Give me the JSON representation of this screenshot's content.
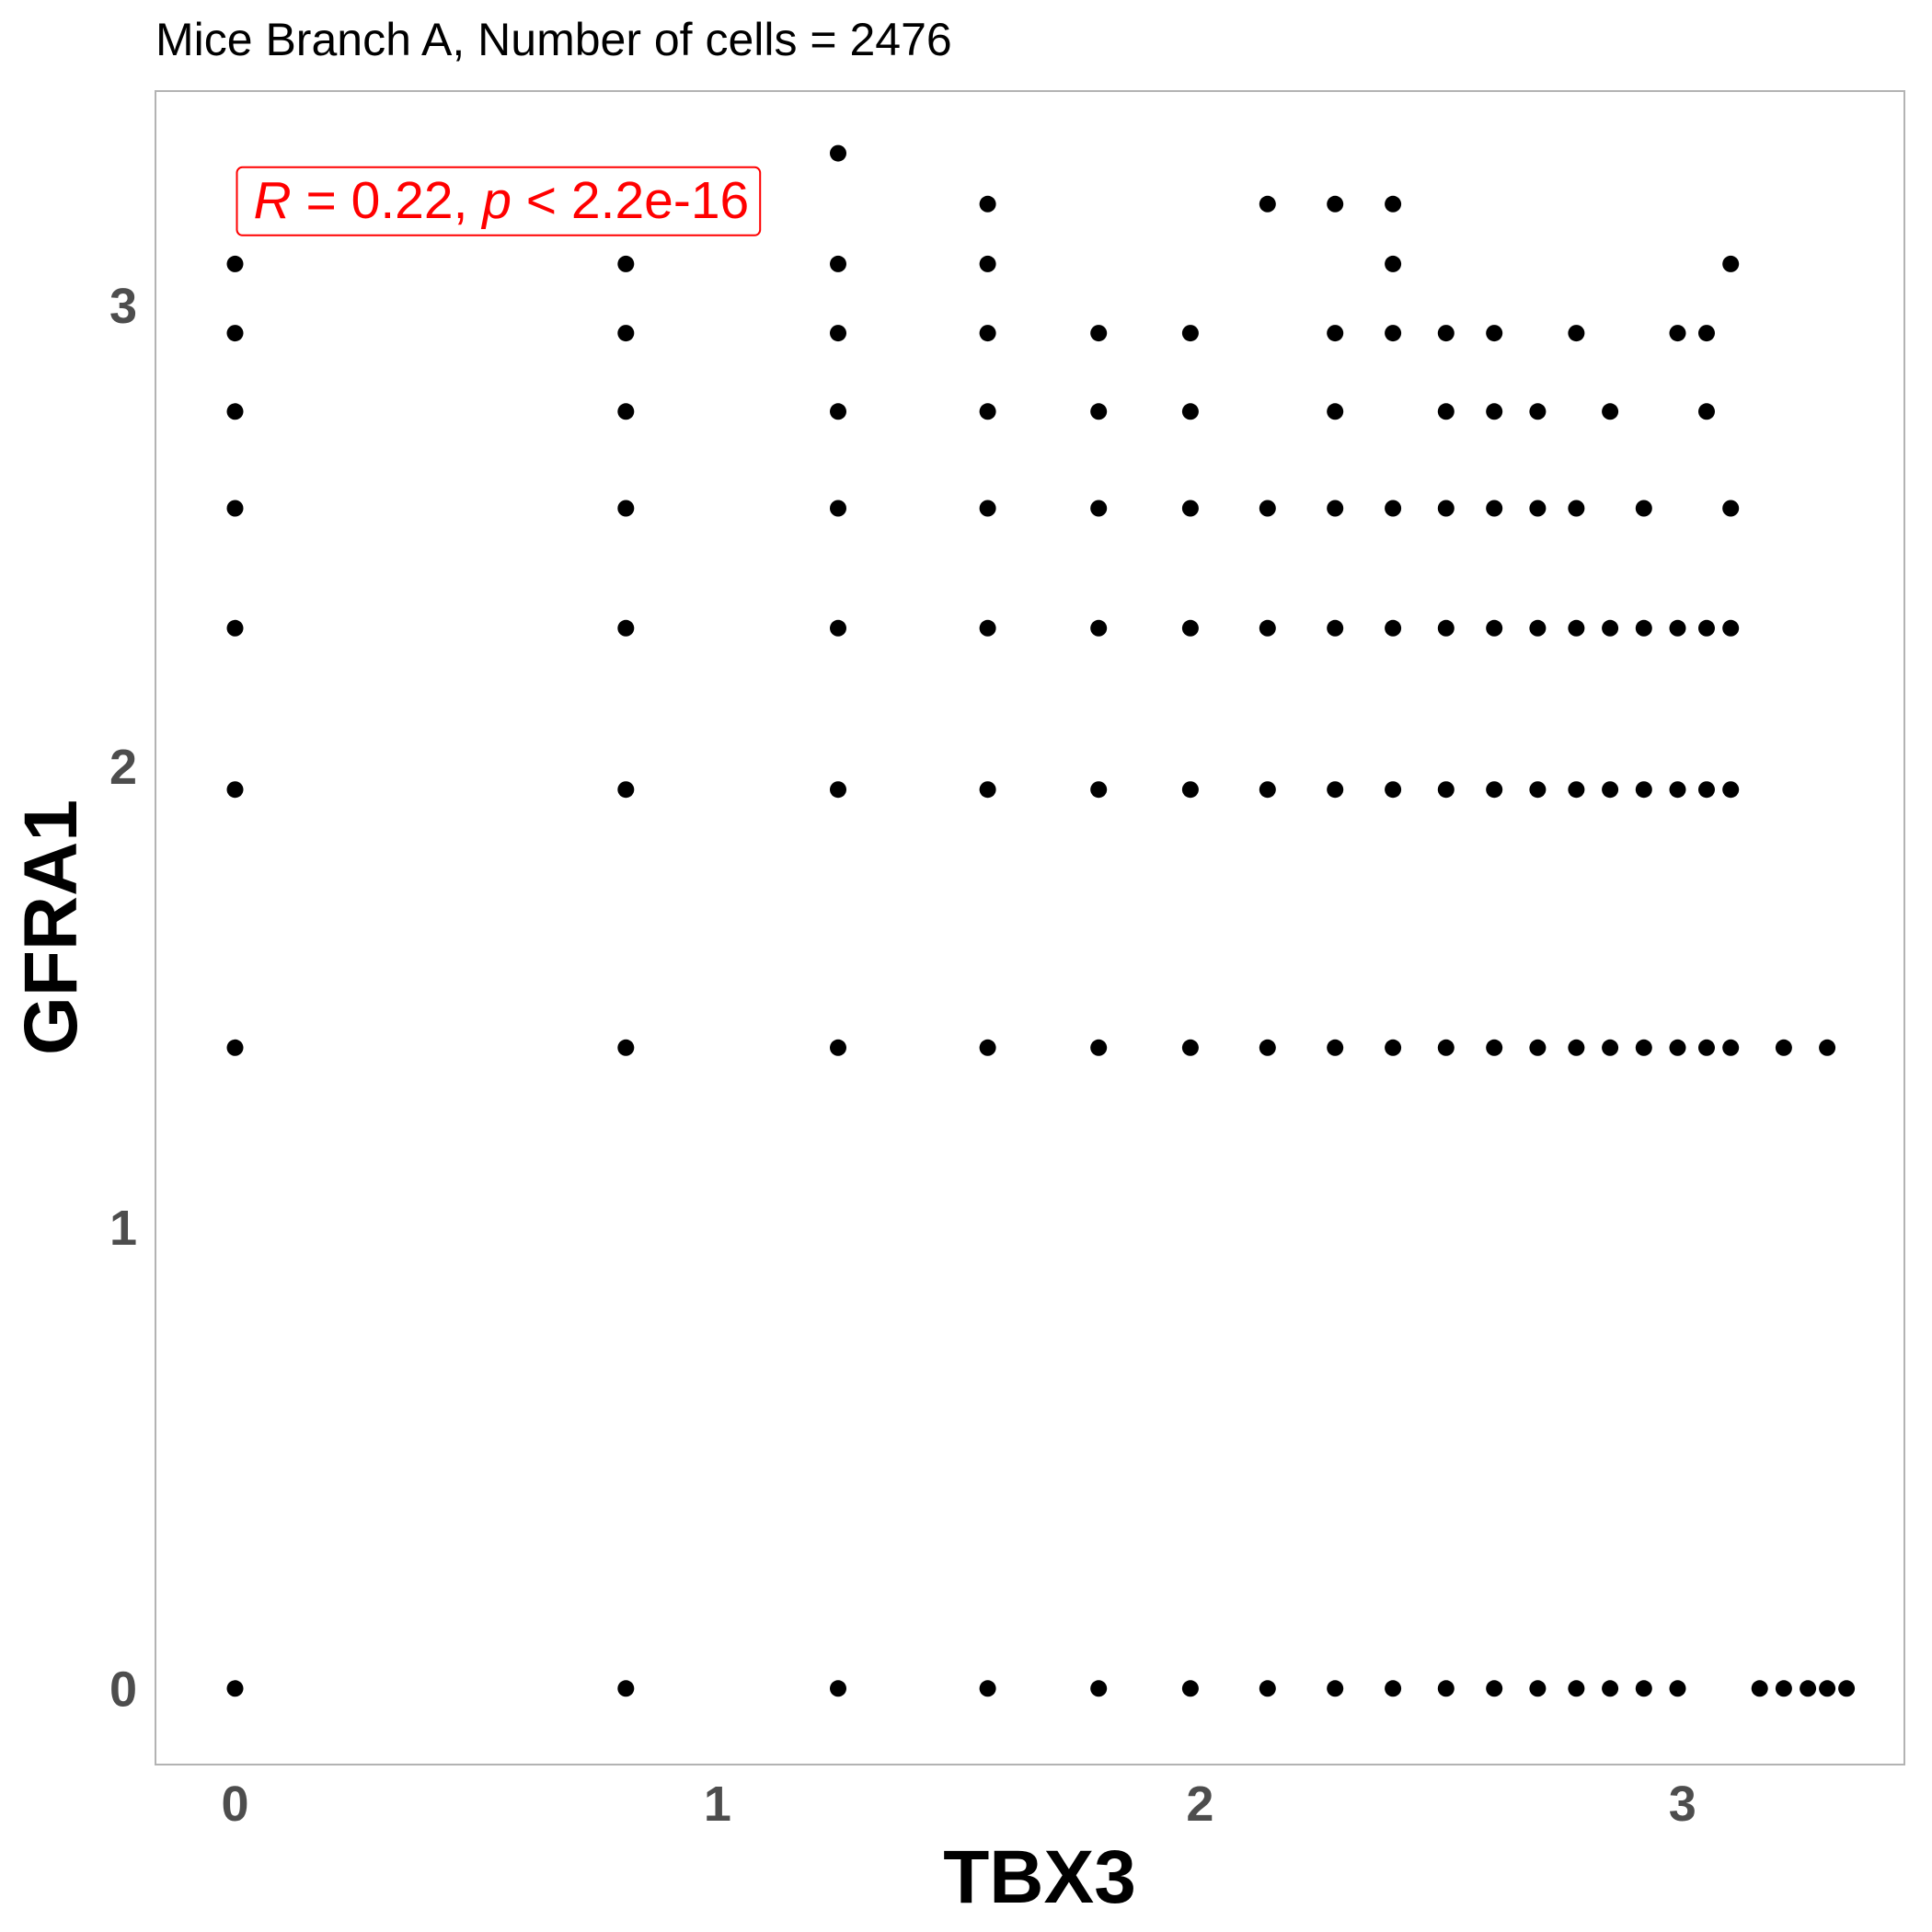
{
  "chart_data": {
    "type": "scatter",
    "title": "Mice Branch A, Number of cells = 2476",
    "xlabel": "TBX3",
    "ylabel": "GFRA1",
    "xlim": [
      -0.165,
      3.46
    ],
    "ylim": [
      -0.165,
      3.465
    ],
    "x_ticks": [
      "0",
      "1",
      "2",
      "3"
    ],
    "y_ticks": [
      "0",
      "1",
      "2",
      "3"
    ],
    "grid": false,
    "point_color": "#000000",
    "annotation": {
      "r_label": "R",
      "r_eq": " = 0.22, ",
      "p_label": "p",
      "p_rest": " < 2.2e-16",
      "color": "#ff0000",
      "x": 0,
      "y": 3.23
    },
    "rows": [
      {
        "y": 0,
        "x": [
          0,
          0.81,
          1.25,
          1.56,
          1.79,
          1.98,
          2.14,
          2.28,
          2.4,
          2.51,
          2.61,
          2.7,
          2.78,
          2.85,
          2.92,
          2.99,
          3.16,
          3.21,
          3.26,
          3.3,
          3.34
        ]
      },
      {
        "y": 1.39,
        "x": [
          0,
          0.81,
          1.25,
          1.56,
          1.79,
          1.98,
          2.14,
          2.28,
          2.4,
          2.51,
          2.61,
          2.7,
          2.78,
          2.85,
          2.92,
          2.99,
          3.05,
          3.1,
          3.21,
          3.3
        ]
      },
      {
        "y": 1.95,
        "x": [
          0,
          0.81,
          1.25,
          1.56,
          1.79,
          1.98,
          2.14,
          2.28,
          2.4,
          2.51,
          2.61,
          2.7,
          2.78,
          2.85,
          2.92,
          2.99,
          3.05,
          3.1
        ]
      },
      {
        "y": 2.3,
        "x": [
          0,
          0.81,
          1.25,
          1.56,
          1.79,
          1.98,
          2.14,
          2.28,
          2.4,
          2.51,
          2.61,
          2.7,
          2.78,
          2.85,
          2.92,
          2.99,
          3.05,
          3.1
        ]
      },
      {
        "y": 2.56,
        "x": [
          0,
          0.81,
          1.25,
          1.56,
          1.79,
          1.98,
          2.14,
          2.28,
          2.4,
          2.51,
          2.61,
          2.7,
          2.78,
          2.92,
          3.1
        ]
      },
      {
        "y": 2.77,
        "x": [
          0,
          0.81,
          1.25,
          1.56,
          1.79,
          1.98,
          2.28,
          2.51,
          2.61,
          2.7,
          2.85,
          3.05
        ]
      },
      {
        "y": 2.94,
        "x": [
          0,
          0.81,
          1.25,
          1.56,
          1.79,
          1.98,
          2.28,
          2.4,
          2.51,
          2.61,
          2.78,
          2.99,
          3.05
        ]
      },
      {
        "y": 3.09,
        "x": [
          0,
          0.81,
          1.25,
          1.56,
          2.4,
          3.1
        ]
      },
      {
        "y": 3.22,
        "x": [
          1.56,
          2.14,
          2.28,
          2.4
        ]
      },
      {
        "y": 3.33,
        "x": [
          1.25
        ]
      }
    ]
  }
}
